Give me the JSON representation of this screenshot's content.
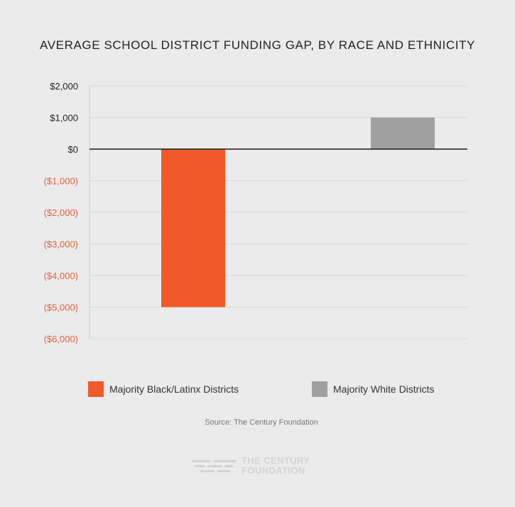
{
  "chart_data": {
    "type": "bar",
    "title": "AVERAGE SCHOOL DISTRICT FUNDING GAP, BY RACE AND ETHNICITY",
    "categories": [
      "Majority Black/Latinx Districts",
      "Majority White Districts"
    ],
    "values": [
      -5000,
      1000
    ],
    "ylim": [
      -6000,
      2000
    ],
    "yticks": [
      2000,
      1000,
      0,
      -1000,
      -2000,
      -3000,
      -4000,
      -5000,
      -6000
    ],
    "ytick_labels": [
      "$2,000",
      "$1,000",
      "$0",
      "($1,000)",
      "($2,000)",
      "($3,000)",
      "($4,000)",
      "($5,000)",
      "($6,000)"
    ],
    "colors": [
      "#f15a29",
      "#a0a0a0"
    ],
    "negative_tick_color": "#e8613c",
    "positive_tick_color": "#222222",
    "grid": true,
    "legend_position": "bottom"
  },
  "source": "Source: The Century Foundation",
  "logo": {
    "line1": "THE CENTURY",
    "line2": "FOUNDATION",
    "icon": "century-foundation-logo-icon"
  }
}
